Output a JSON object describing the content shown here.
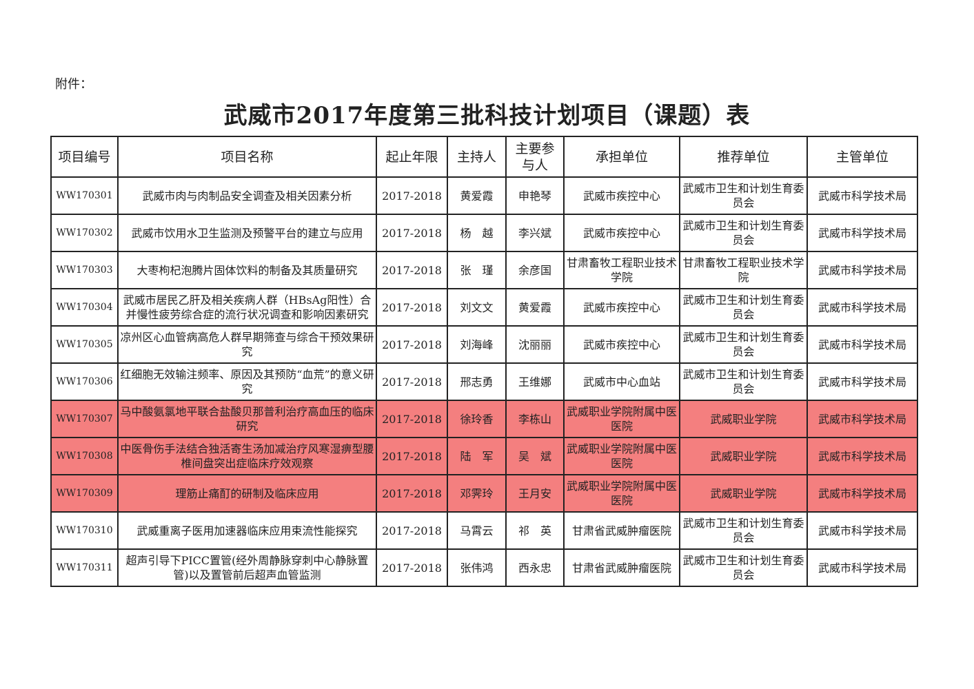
{
  "attachment_label": "附件：",
  "title": "武威市2017年度第三批科技计划项目（课题）表",
  "colors": {
    "highlight": "#f47f7f"
  },
  "table": {
    "headers": [
      "项目编号",
      "项目名称",
      "起止年限",
      "主持人",
      "主要参与人",
      "承担单位",
      "推荐单位",
      "主管单位"
    ],
    "rows": [
      {
        "code": "WW170301",
        "name": "武威市肉与肉制品安全调查及相关因素分析",
        "period": "2017-2018",
        "leader": "黄爱霞",
        "participant": "申艳琴",
        "undertaker": "武威市疾控中心",
        "recommender": "武威市卫生和计划生育委员会",
        "authority": "武威市科学技术局",
        "highlighted": false
      },
      {
        "code": "WW170302",
        "name": "武威市饮用水卫生监测及预警平台的建立与应用",
        "period": "2017-2018",
        "leader": "杨　越",
        "participant": "李兴斌",
        "undertaker": "武威市疾控中心",
        "recommender": "武威市卫生和计划生育委员会",
        "authority": "武威市科学技术局",
        "highlighted": false
      },
      {
        "code": "WW170303",
        "name": "大枣枸杞泡腾片固体饮料的制备及其质量研究",
        "period": "2017-2018",
        "leader": "张　瑾",
        "participant": "余彦国",
        "undertaker": "甘肃畜牧工程职业技术学院",
        "recommender": "甘肃畜牧工程职业技术学院",
        "authority": "武威市科学技术局",
        "highlighted": false
      },
      {
        "code": "WW170304",
        "name": "武威市居民乙肝及相关疾病人群（HBsAg阳性）合并慢性疲劳综合症的流行状况调查和影响因素研究",
        "period": "2017-2018",
        "leader": "刘文文",
        "participant": "黄爱霞",
        "undertaker": "武威市疾控中心",
        "recommender": "武威市卫生和计划生育委员会",
        "authority": "武威市科学技术局",
        "highlighted": false
      },
      {
        "code": "WW170305",
        "name": "凉州区心血管病高危人群早期筛查与综合干预效果研究",
        "period": "2017-2018",
        "leader": "刘海峰",
        "participant": "沈丽丽",
        "undertaker": "武威市疾控中心",
        "recommender": "武威市卫生和计划生育委员会",
        "authority": "武威市科学技术局",
        "highlighted": false
      },
      {
        "code": "WW170306",
        "name": "红细胞无效输注频率、原因及其预防“血荒”的意义研究",
        "period": "2017-2018",
        "leader": "邢志勇",
        "participant": "王维娜",
        "undertaker": "武威市中心血站",
        "recommender": "武威市卫生和计划生育委员会",
        "authority": "武威市科学技术局",
        "highlighted": false
      },
      {
        "code": "WW170307",
        "name": "马中酸氨氯地平联合盐酸贝那普利治疗高血压的临床研究",
        "period": "2017-2018",
        "leader": "徐玲香",
        "participant": "李栋山",
        "undertaker": "武威职业学院附属中医医院",
        "recommender": "武威职业学院",
        "authority": "武威市科学技术局",
        "highlighted": true
      },
      {
        "code": "WW170308",
        "name": "中医骨伤手法结合独活寄生汤加减治疗风寒湿痹型腰椎间盘突出症临床疗效观察",
        "period": "2017-2018",
        "leader": "陆　军",
        "participant": "吴　斌",
        "undertaker": "武威职业学院附属中医医院",
        "recommender": "武威职业学院",
        "authority": "武威市科学技术局",
        "highlighted": true
      },
      {
        "code": "WW170309",
        "name": "理筋止痛酊的研制及临床应用",
        "period": "2017-2018",
        "leader": "邓霁玲",
        "participant": "王月安",
        "undertaker": "武威职业学院附属中医医院",
        "recommender": "武威职业学院",
        "authority": "武威市科学技术局",
        "highlighted": true
      },
      {
        "code": "WW170310",
        "name": "武威重离子医用加速器临床应用束流性能探究",
        "period": "2017-2018",
        "leader": "马霄云",
        "participant": "祁　英",
        "undertaker": "甘肃省武威肿瘤医院",
        "recommender": "武威市卫生和计划生育委员会",
        "authority": "武威市科学技术局",
        "highlighted": false
      },
      {
        "code": "WW170311",
        "name": "超声引导下PICC置管(经外周静脉穿刺中心静脉置管)以及置管前后超声血管监测",
        "period": "2017-2018",
        "leader": "张伟鸿",
        "participant": "西永忠",
        "undertaker": "甘肃省武威肿瘤医院",
        "recommender": "武威市卫生和计划生育委员会",
        "authority": "武威市科学技术局",
        "highlighted": false
      }
    ]
  }
}
